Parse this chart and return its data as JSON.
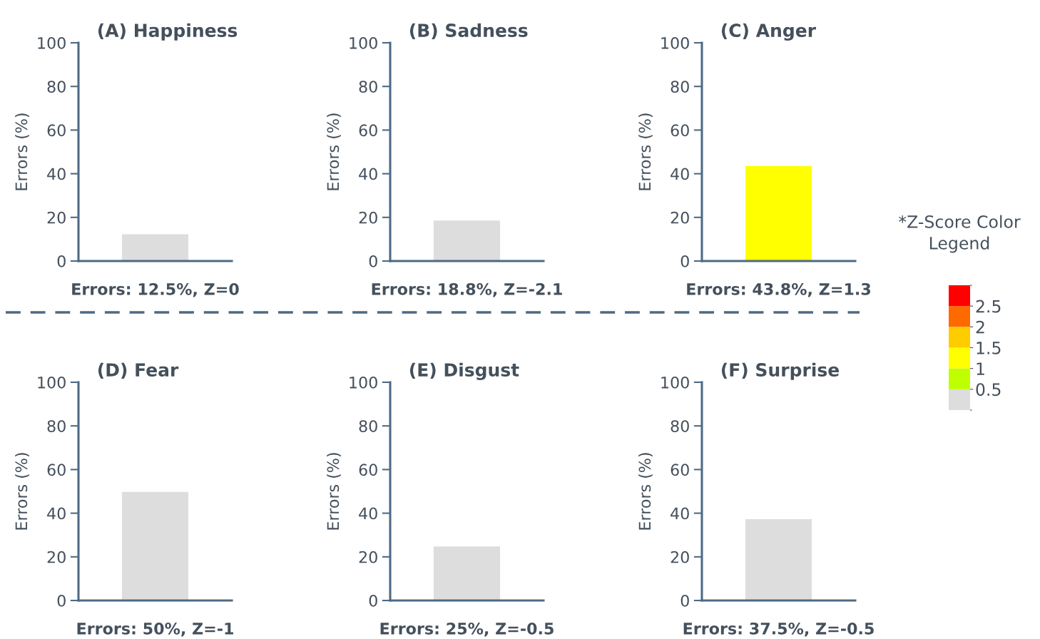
{
  "chart_data": [
    {
      "type": "bar",
      "title": "(A) Happiness",
      "ylabel": "Errors (%)",
      "categories": [
        null
      ],
      "values": [
        12.5
      ],
      "colors": [
        "#dddddd"
      ],
      "ylim": [
        0,
        100
      ],
      "yticks": [
        0,
        20,
        40,
        60,
        80,
        100
      ],
      "grid": false,
      "annotations": [
        "Errors: 12.5%, Z=0"
      ]
    },
    {
      "type": "bar",
      "title": "(B) Sadness",
      "ylabel": "Errors (%)",
      "categories": [
        null
      ],
      "values": [
        18.8
      ],
      "colors": [
        "#dddddd"
      ],
      "ylim": [
        0,
        100
      ],
      "yticks": [
        0,
        20,
        40,
        60,
        80,
        100
      ],
      "grid": false,
      "annotations": [
        "Errors: 18.8%, Z=-2.1"
      ]
    },
    {
      "type": "bar",
      "title": "(C) Anger",
      "ylabel": "Errors (%)",
      "categories": [
        null
      ],
      "values": [
        43.8
      ],
      "colors": [
        "#ffff00"
      ],
      "ylim": [
        0,
        100
      ],
      "yticks": [
        0,
        20,
        40,
        60,
        80,
        100
      ],
      "grid": false,
      "annotations": [
        "Errors: 43.8%, Z=1.3"
      ],
      "clabel": "*Z-Score Color Legend",
      "clim": [
        0,
        3
      ],
      "cticks": [
        0.5,
        1,
        1.5,
        2,
        2.5
      ]
    },
    {
      "type": "bar",
      "title": "(D) Fear",
      "ylabel": "Errors (%)",
      "categories": [
        null
      ],
      "values": [
        50
      ],
      "colors": [
        "#dddddd"
      ],
      "ylim": [
        0,
        100
      ],
      "yticks": [
        0,
        20,
        40,
        60,
        80,
        100
      ],
      "grid": false,
      "annotations": [
        "Errors: 50%, Z=-1"
      ]
    },
    {
      "type": "bar",
      "title": "(E) Disgust",
      "ylabel": "Errors (%)",
      "categories": [
        null
      ],
      "values": [
        25
      ],
      "colors": [
        "#dddddd"
      ],
      "ylim": [
        0,
        100
      ],
      "yticks": [
        0,
        20,
        40,
        60,
        80,
        100
      ],
      "grid": false,
      "annotations": [
        "Errors: 25%, Z=-0.5"
      ]
    },
    {
      "type": "bar",
      "title": "(F) Surprise",
      "ylabel": "Errors (%)",
      "categories": [
        null
      ],
      "values": [
        37.5
      ],
      "colors": [
        "#dddddd"
      ],
      "ylim": [
        0,
        100
      ],
      "yticks": [
        0,
        20,
        40,
        60,
        80,
        100
      ],
      "grid": false,
      "annotations": [
        "Errors: 37.5%, Z=-0.5"
      ]
    }
  ]
}
